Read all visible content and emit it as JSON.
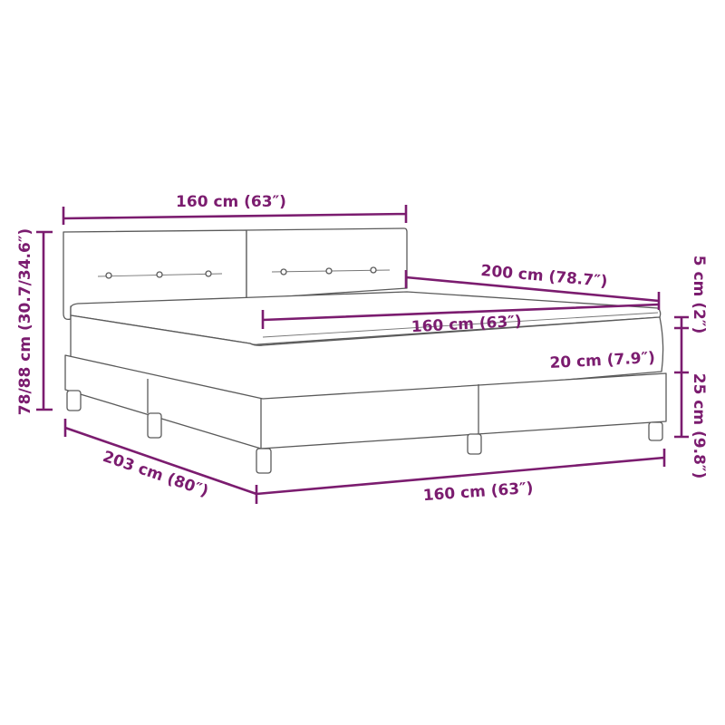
{
  "accent_color": "#7b1c6f",
  "labels": {
    "headboard_width": "160 cm (63″)",
    "total_height": "78/88 cm (30.7/34.6″)",
    "mattress_length": "200 cm (78.7″)",
    "mattress_width": "160 cm (63″)",
    "topper_height": "5 cm (2″)",
    "mattress_height": "20 cm (7.9″)",
    "base_height": "25 cm (9.8″)",
    "bed_length": "203 cm (80″)",
    "bed_width": "160 cm (63″)"
  }
}
